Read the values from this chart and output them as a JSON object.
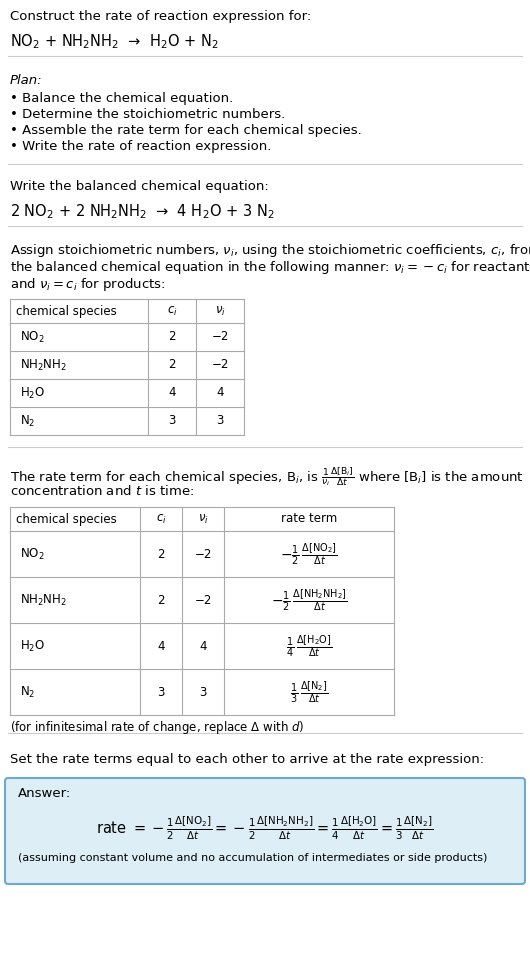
{
  "bg_color": "#ffffff",
  "text_color": "#000000",
  "title_line1": "Construct the rate of reaction expression for:",
  "reaction_unbalanced": "NO$_2$ + NH$_2$NH$_2$  →  H$_2$O + N$_2$",
  "plan_header": "Plan:",
  "plan_items": [
    "• Balance the chemical equation.",
    "• Determine the stoichiometric numbers.",
    "• Assemble the rate term for each chemical species.",
    "• Write the rate of reaction expression."
  ],
  "balanced_header": "Write the balanced chemical equation:",
  "balanced_eq": "2 NO$_2$ + 2 NH$_2$NH$_2$  →  4 H$_2$O + 3 N$_2$",
  "stoich_intro_lines": [
    "Assign stoichiometric numbers, $\\nu_i$, using the stoichiometric coefficients, $c_i$, from",
    "the balanced chemical equation in the following manner: $\\nu_i = -c_i$ for reactants",
    "and $\\nu_i = c_i$ for products:"
  ],
  "table1_headers": [
    "chemical species",
    "$c_i$",
    "$\\nu_i$"
  ],
  "table1_rows": [
    [
      "NO$_2$",
      "2",
      "−2"
    ],
    [
      "NH$_2$NH$_2$",
      "2",
      "−2"
    ],
    [
      "H$_2$O",
      "4",
      "4"
    ],
    [
      "N$_2$",
      "3",
      "3"
    ]
  ],
  "rate_intro_lines": [
    "The rate term for each chemical species, B$_i$, is $\\frac{1}{\\nu_i}\\frac{\\Delta[\\mathrm{B}_i]}{\\Delta t}$ where [B$_i$] is the amount",
    "concentration and $t$ is time:"
  ],
  "table2_headers": [
    "chemical species",
    "$c_i$",
    "$\\nu_i$",
    "rate term"
  ],
  "table2_rows": [
    [
      "NO$_2$",
      "2",
      "−2",
      "$-\\frac{1}{2}\\,\\frac{\\Delta[\\mathrm{NO_2}]}{\\Delta t}$"
    ],
    [
      "NH$_2$NH$_2$",
      "2",
      "−2",
      "$-\\frac{1}{2}\\,\\frac{\\Delta[\\mathrm{NH_2NH_2}]}{\\Delta t}$"
    ],
    [
      "H$_2$O",
      "4",
      "4",
      "$\\frac{1}{4}\\,\\frac{\\Delta[\\mathrm{H_2O}]}{\\Delta t}$"
    ],
    [
      "N$_2$",
      "3",
      "3",
      "$\\frac{1}{3}\\,\\frac{\\Delta[\\mathrm{N_2}]}{\\Delta t}$"
    ]
  ],
  "infinitesimal_note": "(for infinitesimal rate of change, replace Δ with $d$)",
  "set_equal_text": "Set the rate terms equal to each other to arrive at the rate expression:",
  "answer_box_color": "#ddeef6",
  "answer_box_border": "#6aacce",
  "answer_label": "Answer:",
  "answer_rate": "rate $= -\\frac{1}{2}\\frac{\\Delta[\\mathrm{NO_2}]}{\\Delta t} = -\\frac{1}{2}\\frac{\\Delta[\\mathrm{NH_2NH_2}]}{\\Delta t} = \\frac{1}{4}\\frac{\\Delta[\\mathrm{H_2O}]}{\\Delta t} = \\frac{1}{3}\\frac{\\Delta[\\mathrm{N_2}]}{\\Delta t}$",
  "answer_note": "(assuming constant volume and no accumulation of intermediates or side products)"
}
